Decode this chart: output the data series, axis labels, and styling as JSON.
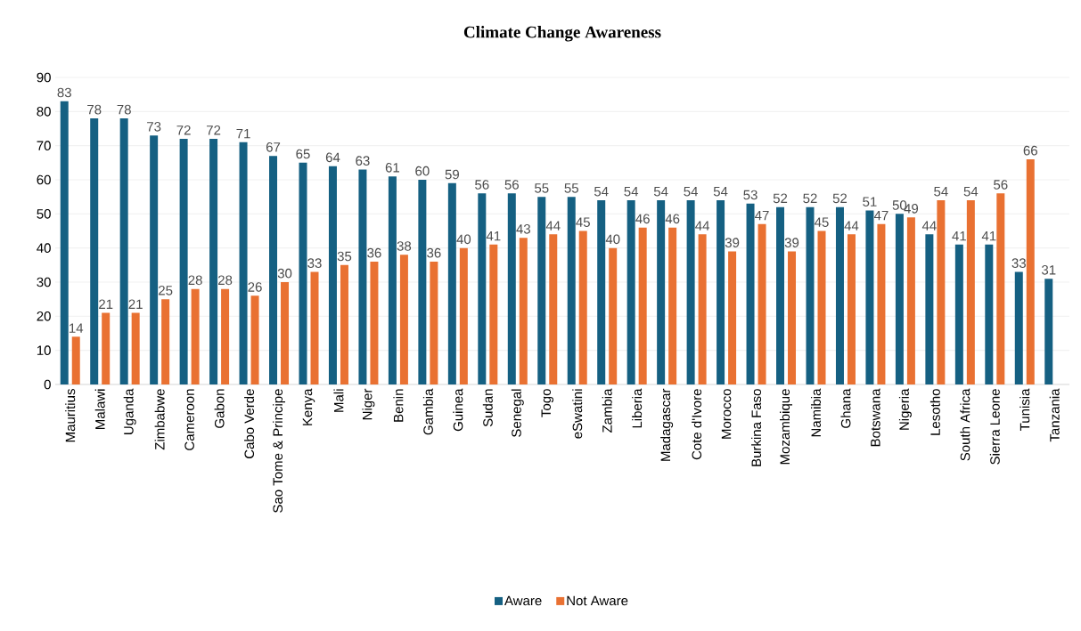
{
  "chart_data": {
    "type": "bar",
    "title": "Climate Change Awareness",
    "categories": [
      "Mauritius",
      "Malawi",
      "Uganda",
      "Zimbabwe",
      "Cameroon",
      "Gabon",
      "Cabo Verde",
      "Sao Tome & Principe",
      "Kenya",
      "Mali",
      "Niger",
      "Benin",
      "Gambia",
      "Guinea",
      "Sudan",
      "Senegal",
      "Togo",
      "eSwatini",
      "Zambia",
      "Liberia",
      "Madagascar",
      "Cote d'Ivore",
      "Morocco",
      "Burkina Faso",
      "Mozambique",
      "Namibia",
      "Ghana",
      "Botswana",
      "Nigeria",
      "Lesotho",
      "South Africa",
      "Sierra Leone",
      "Tunisia",
      "Tanzania"
    ],
    "series": [
      {
        "name": "Aware",
        "color": "#156082",
        "values": [
          83,
          78,
          78,
          73,
          72,
          72,
          71,
          67,
          65,
          64,
          63,
          61,
          60,
          59,
          56,
          56,
          55,
          55,
          54,
          54,
          54,
          54,
          54,
          53,
          52,
          52,
          52,
          51,
          50,
          44,
          41,
          41,
          33,
          31
        ]
      },
      {
        "name": "Not Aware",
        "color": "#e97132",
        "values": [
          14,
          21,
          21,
          25,
          28,
          28,
          26,
          30,
          33,
          35,
          36,
          38,
          36,
          40,
          41,
          43,
          44,
          45,
          40,
          46,
          46,
          44,
          39,
          47,
          39,
          45,
          44,
          47,
          49,
          54,
          54,
          56,
          66,
          null
        ]
      }
    ],
    "ylim": [
      0,
      90
    ],
    "yticks": [
      0,
      10,
      20,
      30,
      40,
      50,
      60,
      70,
      80,
      90
    ],
    "grid": "y",
    "legend": "bottom",
    "data_labels": true
  }
}
